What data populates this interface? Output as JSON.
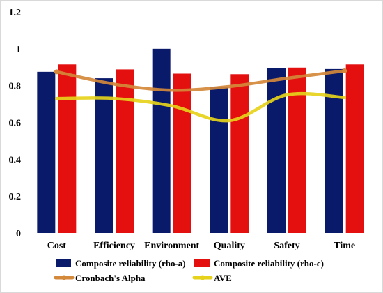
{
  "chart_data": {
    "type": "bar",
    "categories": [
      "Cost",
      "Efficiency",
      "Environment",
      "Quality",
      "Safety",
      "Time"
    ],
    "ylim": [
      0,
      1.2
    ],
    "yticks": [
      "0",
      "0.2",
      "0.4",
      "0.6",
      "0.8",
      "1",
      "1.2"
    ],
    "grid": false,
    "legend_position": "bottom",
    "bar_series": [
      {
        "name": "Composite reliability (rho-a)",
        "color": "#0a1a6b",
        "values": [
          0.875,
          0.84,
          1.0,
          0.795,
          0.895,
          0.89
        ]
      },
      {
        "name": "Composite reliability (rho-c)",
        "color": "#e3100f",
        "values": [
          0.915,
          0.888,
          0.865,
          0.862,
          0.898,
          0.915
        ]
      }
    ],
    "line_series": [
      {
        "name": "Cronbach's Alpha",
        "color": "#d4883a",
        "values": [
          0.875,
          0.808,
          0.775,
          0.795,
          0.84,
          0.88
        ]
      },
      {
        "name": "AVE",
        "color": "#e6d21a",
        "values": [
          0.73,
          0.73,
          0.69,
          0.61,
          0.75,
          0.735
        ]
      }
    ]
  }
}
